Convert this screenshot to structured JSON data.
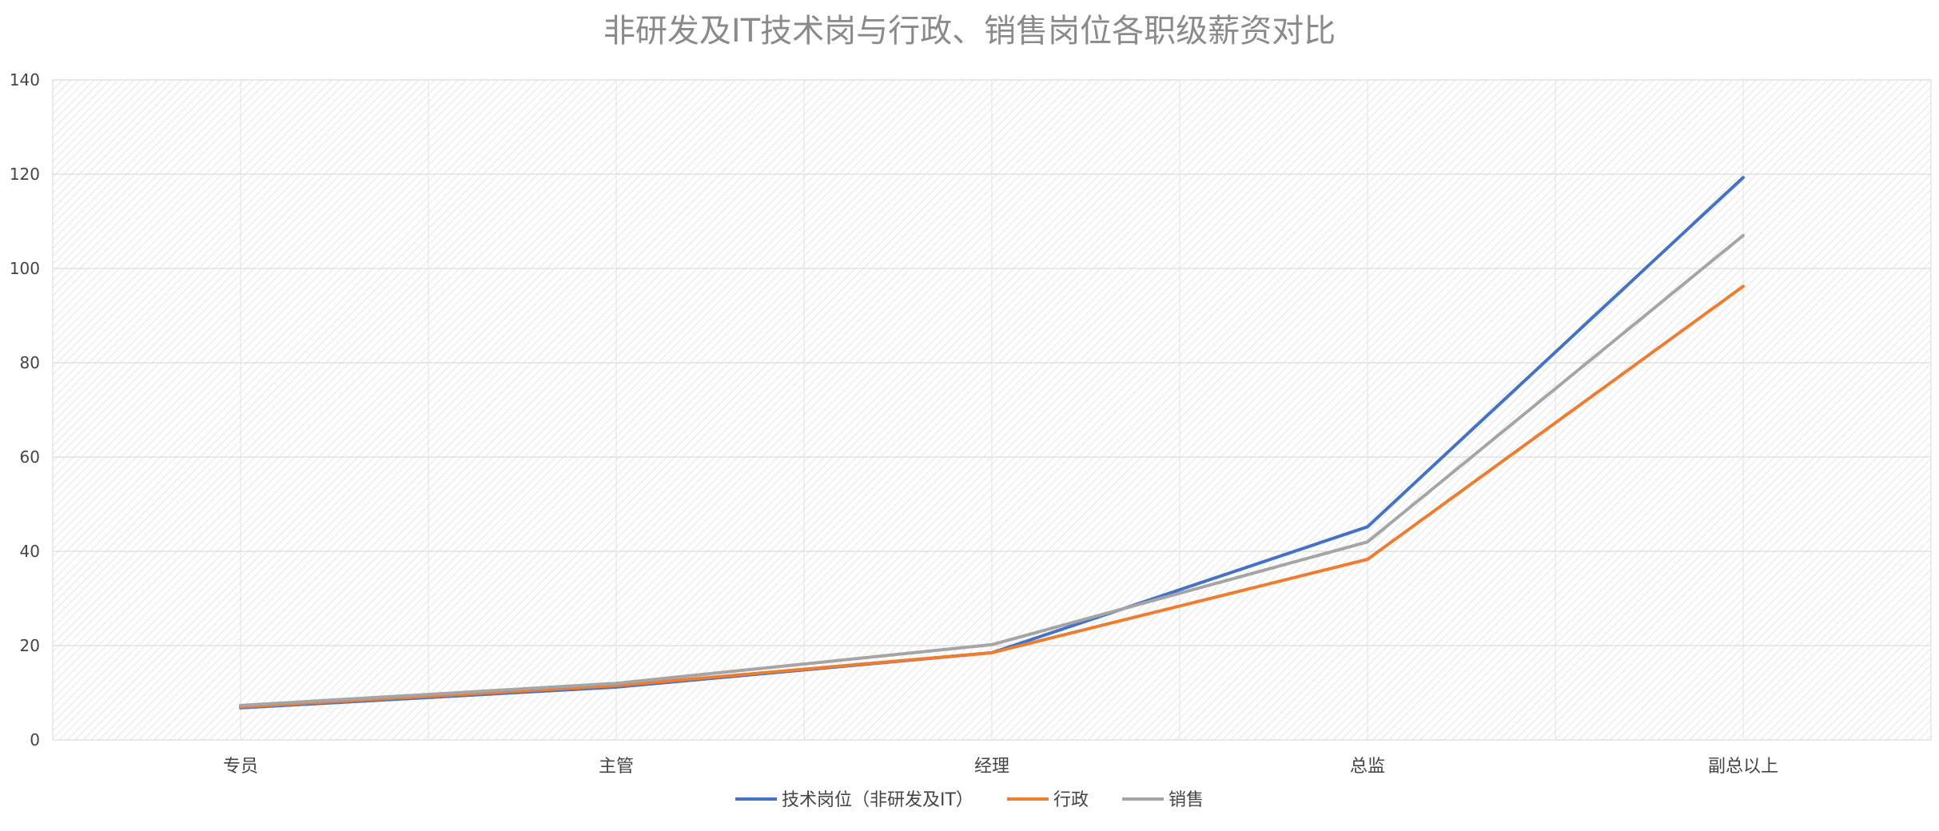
{
  "chart_data": {
    "type": "line",
    "title": "非研发及IT技术岗与行政、销售岗位各职级薪资对比",
    "categories": [
      "专员",
      "主管",
      "经理",
      "总监",
      "副总以上"
    ],
    "ylim": [
      0,
      140
    ],
    "yticks": [
      0,
      20,
      40,
      60,
      80,
      100,
      120,
      140
    ],
    "grid": true,
    "legend_position": "bottom",
    "series": [
      {
        "name": "技术岗位（非研发及IT）",
        "color": "#4472C4",
        "values": [
          6.8,
          11.2,
          18.5,
          45.2,
          119.3
        ]
      },
      {
        "name": "行政",
        "color": "#ED7D31",
        "values": [
          7.0,
          11.5,
          18.5,
          38.3,
          96.2
        ]
      },
      {
        "name": "销售",
        "color": "#A5A5A5",
        "values": [
          7.3,
          12.0,
          20.2,
          42.0,
          107.0
        ]
      }
    ]
  }
}
